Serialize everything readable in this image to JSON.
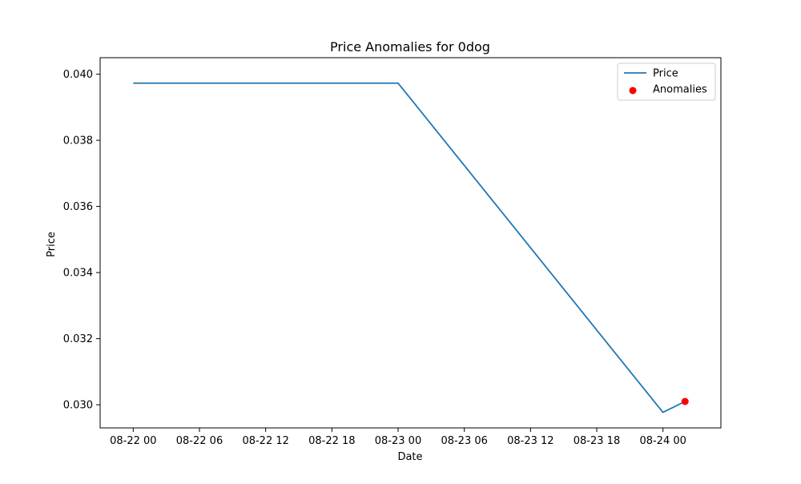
{
  "chart_data": {
    "type": "line",
    "title": "Price Anomalies for 0dog",
    "xlabel": "Date",
    "ylabel": "Price",
    "x_ticks": [
      "08-22 00",
      "08-22 06",
      "08-22 12",
      "08-22 18",
      "08-23 00",
      "08-23 06",
      "08-23 12",
      "08-23 18",
      "08-24 00"
    ],
    "y_ticks": [
      "0.030",
      "0.032",
      "0.034",
      "0.036",
      "0.038",
      "0.040"
    ],
    "xlim": [
      "2024-08-21T21:00",
      "2024-08-24T05:15"
    ],
    "ylim": [
      0.0293,
      0.0405
    ],
    "grid": false,
    "legend_position": "top-right",
    "series": [
      {
        "name": "Price",
        "kind": "line",
        "color": "#1f77b4",
        "points": [
          {
            "x": "2024-08-22T00:00",
            "y": 0.03973
          },
          {
            "x": "2024-08-23T00:00",
            "y": 0.03973
          },
          {
            "x": "2024-08-24T00:00",
            "y": 0.02977
          },
          {
            "x": "2024-08-24T02:00",
            "y": 0.0301
          }
        ]
      },
      {
        "name": "Anomalies",
        "kind": "scatter",
        "color": "#ff0000",
        "points": [
          {
            "x": "2024-08-24T02:00",
            "y": 0.0301
          }
        ]
      }
    ]
  }
}
